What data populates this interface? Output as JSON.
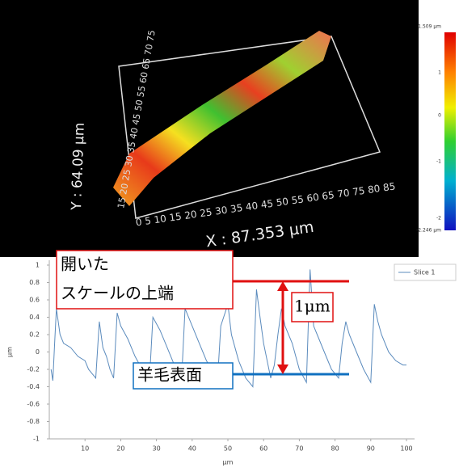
{
  "surface_view": {
    "y_label": "Y : 64.09 µm",
    "x_label": "X : 87.353 µm",
    "x_scale": "0 5 10 15 20 25 30 35 40 45 50 55 60 65 70 75 80 85",
    "y_scale": "15 20 25 30 35 40 45 50 55 60 65 70 75",
    "colorbar_labels": [
      "1.509 µm",
      "1",
      "0",
      "-1",
      "-2",
      "-2.246 µm"
    ]
  },
  "annotations": {
    "scale_edge": [
      "開いた",
      "スケールの上端"
    ],
    "wool_surface": "羊毛表面",
    "height": "1μm"
  },
  "chart_data": {
    "type": "line",
    "xlabel": "µm",
    "ylabel": "µm",
    "x": [
      0.5,
      1,
      1.5,
      2,
      3,
      4,
      6,
      8,
      10,
      11,
      13,
      14,
      15,
      16,
      17,
      18,
      19,
      20,
      22,
      24,
      26,
      28,
      29,
      31,
      33,
      35,
      37,
      38,
      40,
      42,
      44,
      46,
      47,
      48,
      50,
      51,
      53,
      55,
      57,
      58,
      59,
      60,
      61,
      62,
      63,
      64,
      65,
      66,
      68,
      70,
      72,
      73,
      74,
      75,
      77,
      79,
      81,
      82,
      83,
      84,
      86,
      88,
      90,
      91,
      92,
      93,
      95,
      97,
      99,
      100
    ],
    "series": [
      {
        "name": "Slice 1",
        "color": "#5b8bbd",
        "values": [
          -0.2,
          -0.33,
          0.1,
          0.5,
          0.2,
          0.1,
          0.05,
          -0.05,
          -0.1,
          -0.2,
          -0.3,
          0.35,
          0.05,
          -0.05,
          -0.2,
          -0.3,
          0.45,
          0.3,
          0.15,
          -0.05,
          -0.2,
          -0.35,
          0.4,
          0.25,
          0.05,
          -0.15,
          -0.35,
          0.5,
          0.3,
          0.1,
          -0.1,
          -0.25,
          -0.4,
          0.3,
          0.55,
          0.2,
          -0.1,
          -0.3,
          -0.4,
          0.72,
          0.4,
          0.1,
          -0.1,
          -0.3,
          -0.15,
          0.2,
          0.5,
          0.3,
          0.1,
          -0.2,
          -0.35,
          0.95,
          0.3,
          0.2,
          0.0,
          -0.2,
          -0.3,
          0.1,
          0.35,
          0.2,
          0.0,
          -0.2,
          -0.35,
          0.55,
          0.35,
          0.2,
          0.0,
          -0.1,
          -0.15,
          -0.15
        ]
      }
    ],
    "xlim": [
      0,
      100
    ],
    "ylim": [
      -1,
      1
    ],
    "xticks": [
      10,
      20,
      30,
      40,
      50,
      60,
      70,
      80,
      90,
      100
    ],
    "yticks": [
      -1,
      -0.8,
      -0.6,
      -0.4,
      -0.2,
      0,
      0.2,
      0.4,
      0.6,
      0.8,
      1
    ]
  }
}
